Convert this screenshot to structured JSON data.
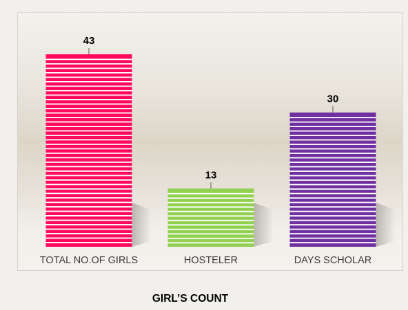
{
  "chart_data": {
    "type": "bar",
    "title": "GIRL’S COUNT",
    "categories": [
      "TOTAL NO.OF GIRLS",
      "HOSTELER",
      "DAYS SCHOLAR"
    ],
    "values": [
      43,
      13,
      30
    ],
    "ylim": [
      0,
      43
    ],
    "grid": false,
    "legend": "none",
    "colors": [
      "#ff0a5e",
      "#92d050",
      "#7030a0"
    ],
    "stripe_color": "#ffffff"
  }
}
